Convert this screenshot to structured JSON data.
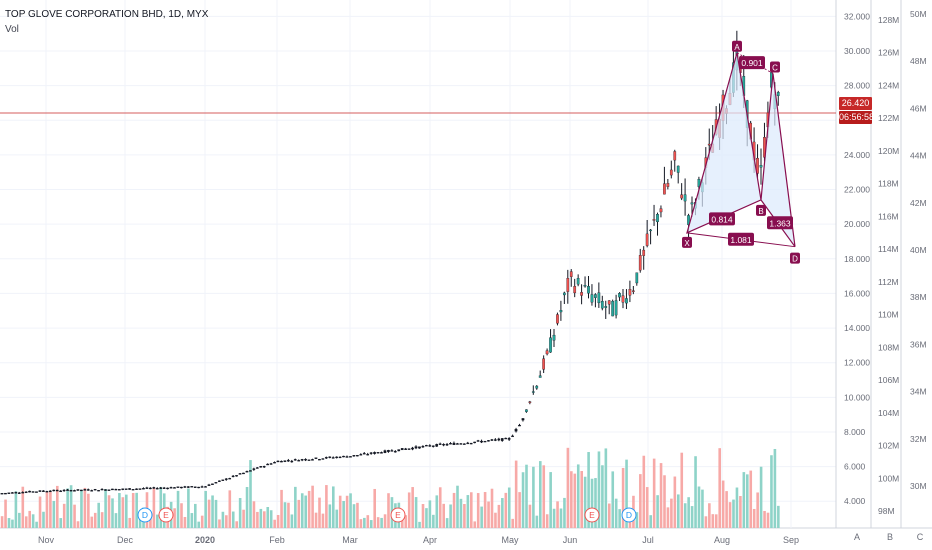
{
  "header": {
    "symbol_line": "TOP GLOVE CORPORATION BHD, 1D, MYX",
    "volume_label": "Vol"
  },
  "price_readout": {
    "last_price": "26.420",
    "countdown": "06:56:58"
  },
  "scale_buttons": [
    "A",
    "B",
    "C"
  ],
  "colors": {
    "up": "#26a69a",
    "down": "#ef5350",
    "pattern": "#880e4f",
    "pattern_fill": "#dbeafc",
    "price_line": "#c62828",
    "grid": "#f0f3fa"
  },
  "chart_data": {
    "type": "candlestick",
    "title": "TOP GLOVE CORPORATION BHD, 1D, MYX",
    "price_axis": {
      "ticks": [
        "32.000",
        "30.000",
        "28.000",
        "26.000",
        "24.000",
        "22.000",
        "20.000",
        "18.000",
        "16.000",
        "14.000",
        "12.000",
        "10.000",
        "8.000",
        "6.000",
        "4.000"
      ],
      "range": [
        2.8,
        32.6
      ]
    },
    "volume_axis_primary": {
      "ticks": [
        "128M",
        "126M",
        "124M",
        "122M",
        "120M",
        "118M",
        "116M",
        "114M",
        "112M",
        "110M",
        "108M",
        "106M",
        "104M",
        "102M",
        "100M",
        "98M"
      ]
    },
    "volume_axis_secondary": {
      "ticks": [
        "50M",
        "48M",
        "46M",
        "44M",
        "42M",
        "40M",
        "38M",
        "36M",
        "34M",
        "32M",
        "30M"
      ]
    },
    "time_axis": {
      "labels": [
        "Nov",
        "Dec",
        "2020",
        "Feb",
        "Mar",
        "Apr",
        "May",
        "Jun",
        "Jul",
        "Aug",
        "Sep"
      ]
    },
    "price_series": {
      "month_anchors": [
        {
          "month": "Oct",
          "close": 4.45
        },
        {
          "month": "Nov",
          "close": 4.6
        },
        {
          "month": "Dec",
          "close": 4.7
        },
        {
          "month": "Jan",
          "close": 4.85
        },
        {
          "month": "Feb",
          "close": 6.3
        },
        {
          "month": "Mar",
          "close": 6.6
        },
        {
          "month": "Apr",
          "close": 7.2
        },
        {
          "month": "May",
          "close": 7.6
        },
        {
          "month": "mid-May",
          "close": 8.6
        },
        {
          "month": "late-May",
          "close": 12.5
        },
        {
          "month": "Jun",
          "close": 16.8
        },
        {
          "month": "mid-Jun",
          "close": 15.0
        },
        {
          "month": "early-Jul",
          "close": 16.4
        },
        {
          "month": "mid-Jul",
          "close": 23.5
        },
        {
          "month": "late-Jul",
          "close": 20.3
        },
        {
          "month": "early-Aug",
          "close": 26.0
        },
        {
          "month": "Aug",
          "close": 29.4
        },
        {
          "month": "mid-Aug",
          "close": 22.4
        },
        {
          "month": "late-Aug",
          "close": 28.3
        },
        {
          "month": "last",
          "close": 26.42
        }
      ]
    },
    "pattern": {
      "name": "harmonic XABCD",
      "points": [
        {
          "label": "X",
          "value": 19.5
        },
        {
          "label": "A",
          "value": 29.9
        },
        {
          "label": "B",
          "value": 21.4
        },
        {
          "label": "C",
          "value": 28.7
        },
        {
          "label": "D",
          "value": 18.7
        }
      ],
      "ratios": [
        "0.901",
        "0.814",
        "1.363",
        "1.081"
      ]
    },
    "event_markers": [
      "D",
      "E",
      "E",
      "E",
      "D"
    ],
    "last_price": 26.42
  }
}
